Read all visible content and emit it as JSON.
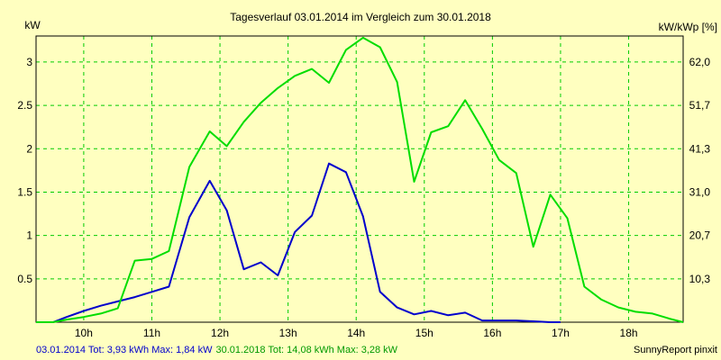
{
  "chart_data": {
    "type": "line",
    "title": "Tagesverlauf 03.01.2014 im Vergleich zum 30.01.2018",
    "ylabel_left": "kW",
    "ylabel_right": "kW/kWp [%]",
    "xlim": [
      9.3,
      18.8
    ],
    "ylim": [
      0,
      3.3
    ],
    "grid": true,
    "x_ticks": [
      {
        "value": 10,
        "label": "10h"
      },
      {
        "value": 11,
        "label": "11h"
      },
      {
        "value": 12,
        "label": "12h"
      },
      {
        "value": 13,
        "label": "13h"
      },
      {
        "value": 14,
        "label": "14h"
      },
      {
        "value": 15,
        "label": "15h"
      },
      {
        "value": 16,
        "label": "16h"
      },
      {
        "value": 17,
        "label": "17h"
      },
      {
        "value": 18,
        "label": "18h"
      }
    ],
    "y_ticks_left": [
      {
        "value": 0.5,
        "label": "0.5"
      },
      {
        "value": 1,
        "label": "1"
      },
      {
        "value": 1.5,
        "label": "1.5"
      },
      {
        "value": 2,
        "label": "2"
      },
      {
        "value": 2.5,
        "label": "2.5"
      },
      {
        "value": 3,
        "label": "3"
      }
    ],
    "y_ticks_right": [
      {
        "value": 0.5,
        "label": "10,3"
      },
      {
        "value": 1,
        "label": "20,7"
      },
      {
        "value": 1.5,
        "label": "31,0"
      },
      {
        "value": 2,
        "label": "41,3"
      },
      {
        "value": 2.5,
        "label": "51,7"
      },
      {
        "value": 3,
        "label": "62,0"
      }
    ],
    "series": [
      {
        "name": "03.01.2014",
        "color": "#0000cc",
        "x": [
          9.3,
          9.55,
          9.75,
          10.0,
          10.25,
          10.5,
          10.75,
          11.0,
          11.25,
          11.55,
          11.85,
          12.1,
          12.35,
          12.6,
          12.85,
          13.1,
          13.35,
          13.6,
          13.85,
          14.1,
          14.35,
          14.6,
          14.85,
          15.1,
          15.35,
          15.6,
          15.85,
          16.1,
          16.35,
          16.6,
          16.85,
          17.0
        ],
        "y": [
          0,
          0,
          0.06,
          0.13,
          0.19,
          0.24,
          0.29,
          0.35,
          0.41,
          1.21,
          1.63,
          1.29,
          0.61,
          0.69,
          0.54,
          1.04,
          1.23,
          1.83,
          1.73,
          1.22,
          0.35,
          0.17,
          0.09,
          0.13,
          0.08,
          0.11,
          0.02,
          0.02,
          0.02,
          0.01,
          0.0,
          0.0
        ]
      },
      {
        "name": "30.01.2018",
        "color": "#00dd00",
        "x": [
          9.3,
          9.55,
          9.75,
          10.0,
          10.25,
          10.5,
          10.75,
          11.0,
          11.25,
          11.55,
          11.85,
          12.1,
          12.35,
          12.6,
          12.85,
          13.1,
          13.35,
          13.6,
          13.85,
          14.1,
          14.35,
          14.6,
          14.85,
          15.1,
          15.35,
          15.6,
          15.85,
          16.1,
          16.35,
          16.6,
          16.85,
          17.1,
          17.35,
          17.6,
          17.85,
          18.1,
          18.35,
          18.6,
          18.8
        ],
        "y": [
          0,
          0,
          0.03,
          0.06,
          0.1,
          0.16,
          0.71,
          0.73,
          0.82,
          1.79,
          2.2,
          2.03,
          2.31,
          2.53,
          2.7,
          2.84,
          2.92,
          2.76,
          3.14,
          3.28,
          3.17,
          2.77,
          1.62,
          2.19,
          2.26,
          2.56,
          2.23,
          1.87,
          1.72,
          0.87,
          1.47,
          1.2,
          0.41,
          0.26,
          0.17,
          0.12,
          0.1,
          0.04,
          0.0
        ]
      }
    ],
    "footer": {
      "left_a": "03.01.2014 Tot: 3,93 kWh Max: 1,84 kW",
      "left_b": "30.01.2018 Tot: 14,08 kWh Max: 3,28 kW",
      "right": "SunnyReport pinxit"
    }
  }
}
